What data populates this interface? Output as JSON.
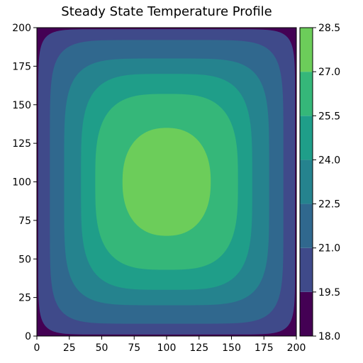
{
  "chart_data": {
    "type": "heatmap",
    "subtype": "filled-contour",
    "title": "Steady State Temperature Profile",
    "xlabel": "",
    "ylabel": "",
    "xlim": [
      0,
      200
    ],
    "ylim": [
      0,
      200
    ],
    "x_ticks": [
      "0",
      "25",
      "50",
      "75",
      "100",
      "125",
      "150",
      "175",
      "200"
    ],
    "y_ticks": [
      "0",
      "25",
      "50",
      "75",
      "100",
      "125",
      "150",
      "175",
      "200"
    ],
    "grid": false,
    "colormap": "viridis",
    "center": [
      100,
      100
    ],
    "min_value": 18.0,
    "max_value": 28.5,
    "levels": [
      18.0,
      19.5,
      21.0,
      22.5,
      24.0,
      25.5,
      27.0,
      28.5
    ],
    "level_colors": [
      "#440154",
      "#3f4a8a",
      "#30688e",
      "#25838e",
      "#1f9e89",
      "#35b779",
      "#6ccd5a",
      "#d0e11c"
    ],
    "contours": [
      {
        "level": 19.5,
        "x_extent": [
          1,
          199
        ],
        "y_extent": [
          1,
          199
        ],
        "shape_exponent": 12
      },
      {
        "level": 21.0,
        "x_extent": [
          10,
          190
        ],
        "y_extent": [
          8,
          192
        ],
        "shape_exponent": 7
      },
      {
        "level": 22.5,
        "x_extent": [
          21,
          179
        ],
        "y_extent": [
          20,
          180
        ],
        "shape_exponent": 5
      },
      {
        "level": 24.0,
        "x_extent": [
          34,
          166
        ],
        "y_extent": [
          30,
          170
        ],
        "shape_exponent": 4
      },
      {
        "level": 25.5,
        "x_extent": [
          45,
          155
        ],
        "y_extent": [
          43,
          157
        ],
        "shape_exponent": 3.2
      },
      {
        "level": 27.0,
        "x_extent": [
          66,
          134
        ],
        "y_extent": [
          65,
          135
        ],
        "shape_exponent": 2.3
      }
    ],
    "colorbar": {
      "ticks": [
        "18.0",
        "19.5",
        "21.0",
        "22.5",
        "24.0",
        "25.5",
        "27.0",
        "28.5"
      ]
    }
  }
}
